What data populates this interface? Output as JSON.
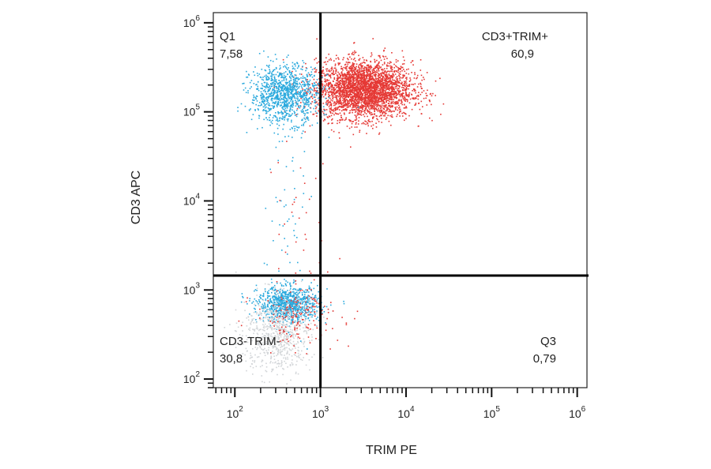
{
  "chart_data": {
    "type": "scatter",
    "title": "",
    "xlabel": "TRIM PE",
    "ylabel": "CD3 APC",
    "x_scale": "log",
    "y_scale": "log",
    "xlim": [
      56,
      1300000
    ],
    "ylim": [
      80,
      1300000
    ],
    "x_ticks": [
      100,
      1000,
      10000,
      100000,
      1000000
    ],
    "y_ticks": [
      100,
      1000,
      10000,
      100000,
      1000000
    ],
    "x_tick_labels": [
      [
        "10",
        "2"
      ],
      [
        "10",
        "3"
      ],
      [
        "10",
        "4"
      ],
      [
        "10",
        "5"
      ],
      [
        "10",
        "6"
      ]
    ],
    "y_tick_labels": [
      [
        "10",
        "2"
      ],
      [
        "10",
        "3"
      ],
      [
        "10",
        "4"
      ],
      [
        "10",
        "5"
      ],
      [
        "10",
        "6"
      ]
    ],
    "gates": {
      "x": 1000,
      "y": 1450
    },
    "quadrants": [
      {
        "name": "Q1",
        "value": "7,58",
        "position": "top-left"
      },
      {
        "name": "CD3+TRIM+",
        "value": "60,9",
        "position": "top-right"
      },
      {
        "name": "CD3-TRIM-",
        "value": "30,8",
        "position": "bottom-left"
      },
      {
        "name": "Q3",
        "value": "0,79",
        "position": "bottom-right"
      }
    ],
    "series": [
      {
        "color": "#e53935",
        "population": "CD3+TRIM+",
        "center": [
          3200,
          180000
        ],
        "spread_log10": [
          0.28,
          0.16
        ],
        "events": 3200
      },
      {
        "color": "#2aa9dd",
        "population": "Q1",
        "center": [
          380,
          160000
        ],
        "spread_log10": [
          0.2,
          0.16
        ],
        "events": 1100
      },
      {
        "color": "#2aa9dd",
        "population": "CD3-TRIM-",
        "center": [
          420,
          700
        ],
        "spread_log10": [
          0.18,
          0.1
        ],
        "events": 900
      },
      {
        "color": "#d2d5d8",
        "population": "CD3-TRIM-",
        "center": [
          300,
          320
        ],
        "spread_log10": [
          0.2,
          0.22
        ],
        "events": 700
      },
      {
        "color": "#e53935",
        "population": "CD3-TRIM-",
        "center": [
          550,
          520
        ],
        "spread_log10": [
          0.25,
          0.15
        ],
        "events": 160
      },
      {
        "color": "#2aa9dd",
        "population": "transition",
        "center": [
          400,
          5000
        ],
        "spread_log10": [
          0.15,
          0.6
        ],
        "events": 60
      },
      {
        "color": "#e53935",
        "population": "transition",
        "center": [
          600,
          4500
        ],
        "spread_log10": [
          0.15,
          0.6
        ],
        "events": 40
      }
    ]
  }
}
